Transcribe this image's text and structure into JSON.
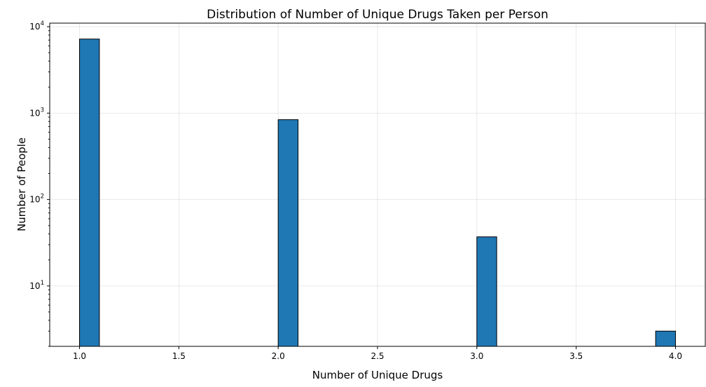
{
  "chart_data": {
    "type": "bar",
    "title": "Distribution of Number of Unique Drugs Taken per Person",
    "xlabel": "Number of Unique Drugs",
    "ylabel": "Number of People",
    "xlim": [
      0.85,
      4.15
    ],
    "ylim": [
      2,
      11000
    ],
    "yscale": "log",
    "grid": true,
    "bar_color": "#1f77b4",
    "edge_color": "#000000",
    "bin_width": 0.1,
    "x_ticks": [
      1.0,
      1.5,
      2.0,
      2.5,
      3.0,
      3.5,
      4.0
    ],
    "x_tick_labels": [
      "1.0",
      "1.5",
      "2.0",
      "2.5",
      "3.0",
      "3.5",
      "4.0"
    ],
    "y_ticks": [
      {
        "base": "10",
        "exp": "1",
        "value": 10
      },
      {
        "base": "10",
        "exp": "2",
        "value": 100
      },
      {
        "base": "10",
        "exp": "3",
        "value": 1000
      },
      {
        "base": "10",
        "exp": "4",
        "value": 10000
      }
    ],
    "bars": [
      {
        "x_start": 1.0,
        "x_end": 1.1,
        "value": 7200
      },
      {
        "x_start": 2.0,
        "x_end": 2.1,
        "value": 840
      },
      {
        "x_start": 3.0,
        "x_end": 3.1,
        "value": 37
      },
      {
        "x_start": 3.9,
        "x_end": 4.0,
        "value": 3
      }
    ]
  }
}
